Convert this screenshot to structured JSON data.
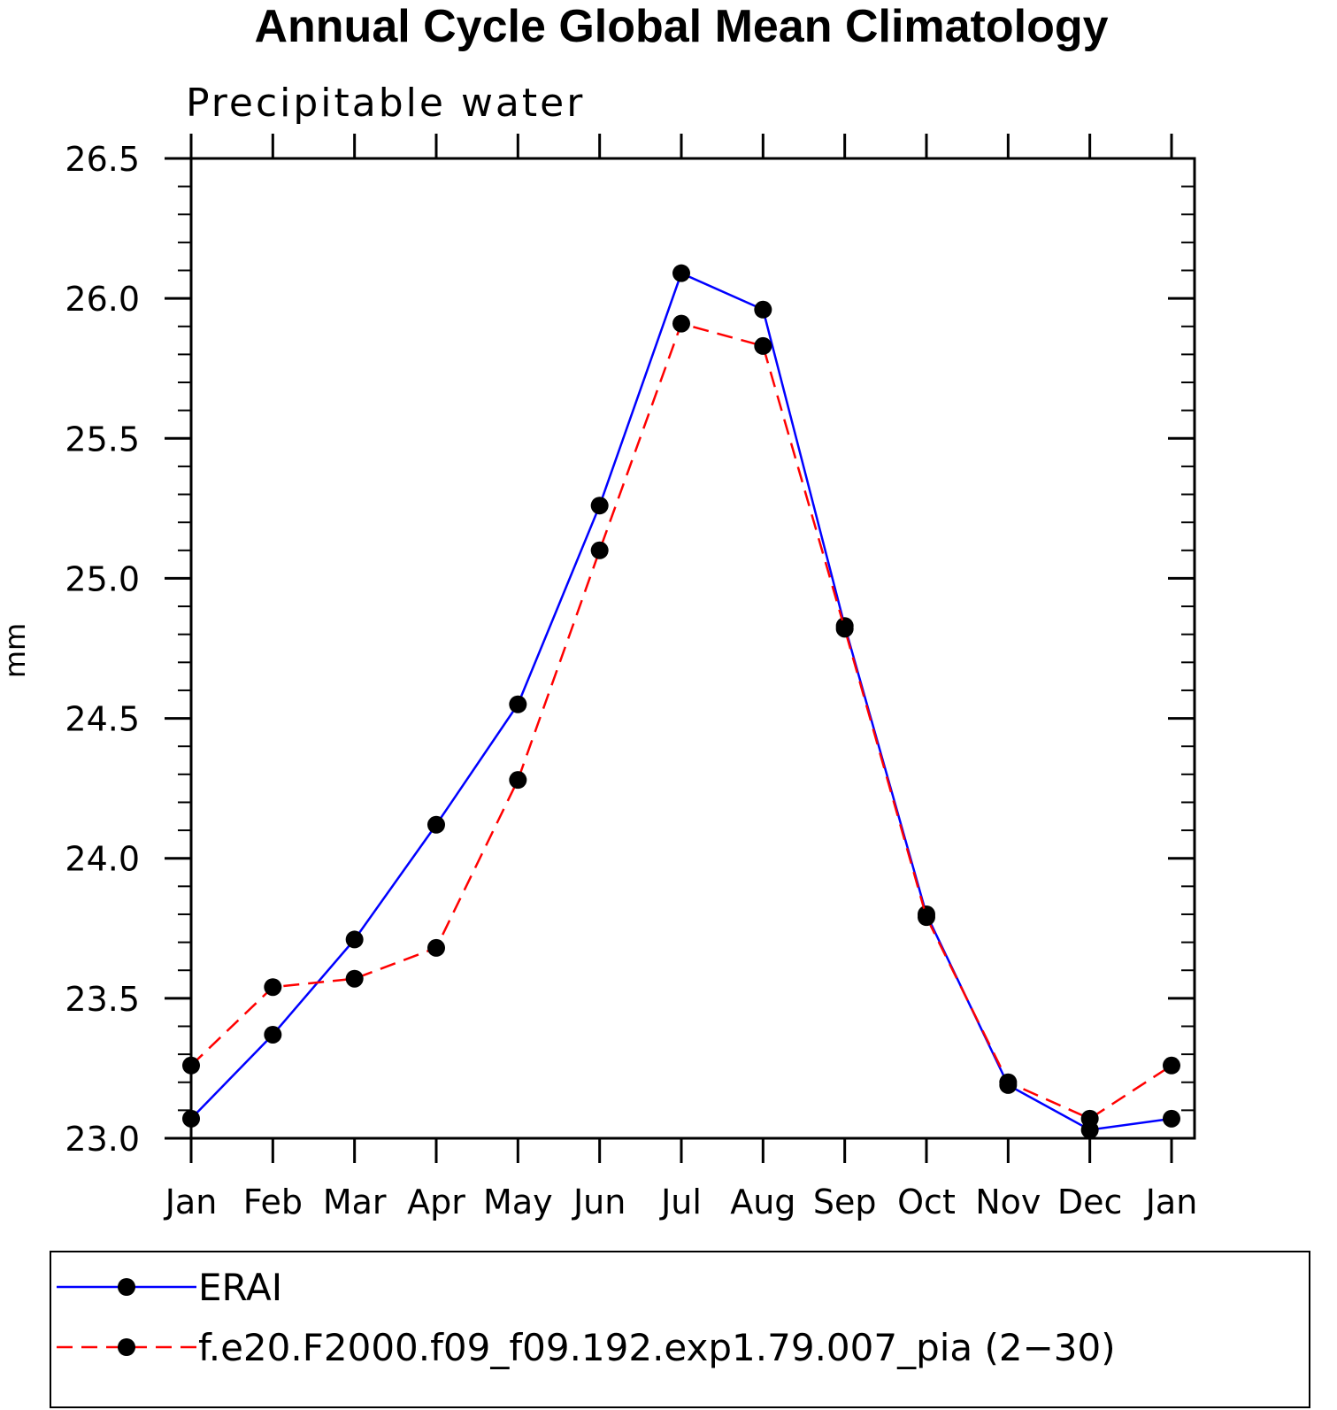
{
  "chart_data": {
    "type": "line",
    "title": "Annual Cycle Global Mean Climatology",
    "subtitle": "Precipitable water",
    "xlabel": "",
    "ylabel": "mm",
    "categories": [
      "Jan",
      "Feb",
      "Mar",
      "Apr",
      "May",
      "Jun",
      "Jul",
      "Aug",
      "Sep",
      "Oct",
      "Nov",
      "Dec",
      "Jan"
    ],
    "ylim": [
      23.0,
      26.5
    ],
    "yticks": [
      "23.0",
      "23.5",
      "24.0",
      "24.5",
      "25.0",
      "25.5",
      "26.0",
      "26.5"
    ],
    "series": [
      {
        "name": "ERAI",
        "color": "#0000ff",
        "dash": "solid",
        "values": [
          23.07,
          23.37,
          23.71,
          24.12,
          24.55,
          25.26,
          26.09,
          25.96,
          24.83,
          23.8,
          23.19,
          23.03,
          23.07
        ]
      },
      {
        "name": "f.e20.F2000.f09_f09.192.exp1.79.007_pia (2−30)",
        "color": "#ff0000",
        "dash": "dashed",
        "values": [
          23.26,
          23.54,
          23.57,
          23.68,
          24.28,
          25.1,
          25.91,
          25.83,
          24.82,
          23.79,
          23.2,
          23.07,
          23.26
        ]
      }
    ],
    "legend": "bottom"
  }
}
